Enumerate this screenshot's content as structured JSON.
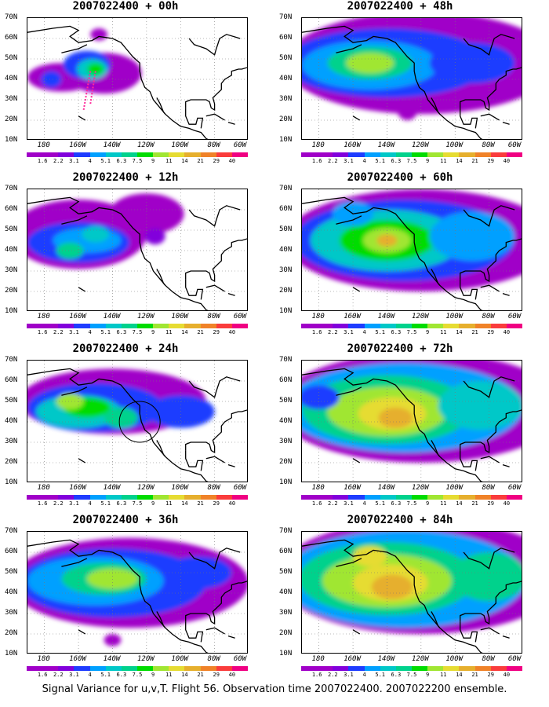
{
  "footer": "Signal Variance for u,v,T. Flight 56. Observation time 2007022400. 2007022200 ensemble.",
  "chart_data": {
    "type": "heatmap",
    "description": "Filled contour maps of signal variance over the North Pacific / North America",
    "x_ticks": [
      "180",
      "160W",
      "140W",
      "120W",
      "100W",
      "80W",
      "60W"
    ],
    "y_ticks": [
      "70N",
      "60N",
      "50N",
      "40N",
      "30N",
      "20N",
      "10N"
    ],
    "xlim": [
      "170E",
      "60W"
    ],
    "ylim": [
      "10N",
      "70N"
    ],
    "grid": "dotted",
    "colorbar": {
      "levels": [
        "1.6",
        "2.2",
        "3.1",
        "4",
        "5.1",
        "6.3",
        "7.5",
        "9",
        "11",
        "14",
        "21",
        "29",
        "40"
      ],
      "colors": [
        "#a000c8",
        "#8200dc",
        "#1e3cff",
        "#00a0ff",
        "#00c8c8",
        "#00d28c",
        "#00dc00",
        "#a0e632",
        "#e6dc32",
        "#e6af2d",
        "#f08228",
        "#fa3c3c",
        "#f00082"
      ]
    },
    "panels": [
      {
        "title": "2007022400 + 00h",
        "peak": "9-11"
      },
      {
        "title": "2007022400 + 12h",
        "peak": "9"
      },
      {
        "title": "2007022400 + 24h",
        "peak": "11"
      },
      {
        "title": "2007022400 + 36h",
        "peak": "11"
      },
      {
        "title": "2007022400 + 48h",
        "peak": "11"
      },
      {
        "title": "2007022400 + 60h",
        "peak": "14"
      },
      {
        "title": "2007022400 + 72h",
        "peak": "21"
      },
      {
        "title": "2007022400 + 84h",
        "peak": "21"
      }
    ]
  }
}
